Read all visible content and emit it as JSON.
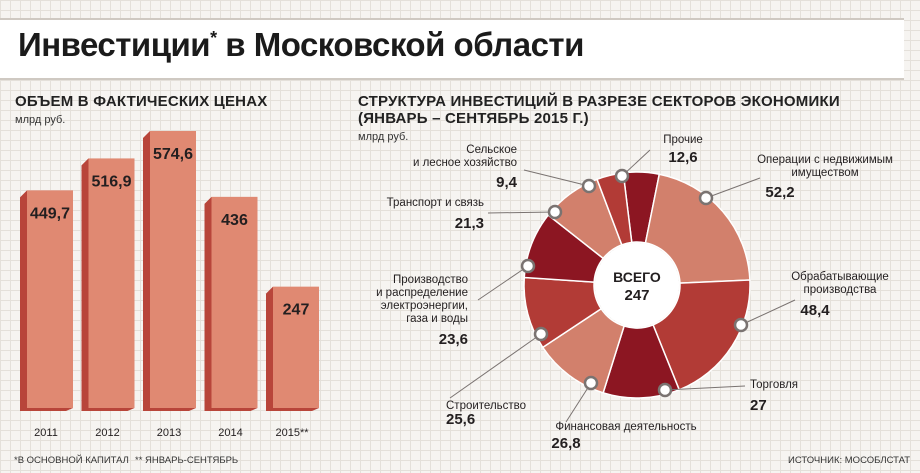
{
  "title": "Инвестиции",
  "title_mark": "*",
  "title_rest": " в Московской области",
  "left_chart": {
    "heading": "ОБЪЕМ В ФАКТИЧЕСКИХ ЦЕНАХ",
    "unit": "млрд руб."
  },
  "right_chart": {
    "heading_line1": "СТРУКТУРА ИНВЕСТИЦИЙ В РАЗРЕЗЕ СЕКТОРОВ ЭКОНОМИКИ",
    "heading_line2": "(ЯНВАРЬ – СЕНТЯБРЬ 2015 Г.)",
    "unit": "млрд руб.",
    "center_label": "ВСЕГО",
    "center_value": "247"
  },
  "footnotes": {
    "note1": "*В ОСНОВНОЙ КАПИТАЛ",
    "note2": "** ЯНВАРЬ-СЕНТЯБРЬ",
    "source": "ИСТОЧНИК: МОСОБЛСТАТ"
  },
  "colors": {
    "bar_face": "#e08972",
    "bar_side": "#b8453a",
    "dark_red": "#8c1622",
    "red": "#b23b36",
    "salmon": "#d2806c"
  },
  "chart_data": [
    {
      "type": "bar",
      "categories": [
        "2011",
        "2012",
        "2013",
        "2014",
        "2015**"
      ],
      "values": [
        449.7,
        516.9,
        574.6,
        436,
        247
      ],
      "value_labels": [
        "449,7",
        "516,9",
        "574,6",
        "436",
        "247"
      ],
      "title": "ОБЪЕМ В ФАКТИЧЕСКИХ ЦЕНАХ",
      "ylabel": "млрд руб.",
      "ylim": [
        0,
        600
      ]
    },
    {
      "type": "pie",
      "donut": true,
      "total": 247,
      "slices": [
        {
          "label": "Прочие",
          "value": 12.6,
          "value_label": "12,6",
          "color": "#8c1622"
        },
        {
          "label": "Операции с недвижимым имуществом",
          "value": 52.2,
          "value_label": "52,2",
          "color": "#d2806c"
        },
        {
          "label": "Обрабатывающие производства",
          "value": 48.4,
          "value_label": "48,4",
          "color": "#b23b36"
        },
        {
          "label": "Торговля",
          "value": 27,
          "value_label": "27",
          "color": "#8c1622"
        },
        {
          "label": "Финансовая деятельность",
          "value": 26.8,
          "value_label": "26,8",
          "color": "#d2806c"
        },
        {
          "label": "Строительство",
          "value": 25.6,
          "value_label": "25,6",
          "color": "#b23b36"
        },
        {
          "label": "Производство и распределение электроэнергии, газа и воды",
          "value": 23.6,
          "value_label": "23,6",
          "color": "#8c1622"
        },
        {
          "label": "Транспорт и связь",
          "value": 21.3,
          "value_label": "21,3",
          "color": "#d2806c"
        },
        {
          "label": "Сельское и лесное хозяйство",
          "value": 9.4,
          "value_label": "9,4",
          "color": "#b23b36"
        }
      ]
    }
  ]
}
